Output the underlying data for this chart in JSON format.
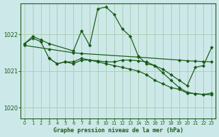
{
  "bg_color": "#cce8e8",
  "line_color": "#1a5c1a",
  "grid_color": "#a8cca8",
  "xlabel": "Graphe pression niveau de la mer (hPa)",
  "ylim": [
    1019.7,
    1022.85
  ],
  "xlim": [
    -0.5,
    23.5
  ],
  "yticks": [
    1020,
    1021,
    1022
  ],
  "xticks": [
    0,
    1,
    2,
    3,
    4,
    5,
    6,
    7,
    8,
    9,
    10,
    11,
    12,
    13,
    14,
    15,
    16,
    17,
    18,
    19,
    20,
    21,
    22,
    23
  ],
  "series": [
    {
      "x": [
        0,
        1,
        2,
        3,
        6,
        7,
        8,
        9,
        10,
        11,
        12,
        13,
        14,
        15,
        16,
        17,
        18,
        19,
        20,
        21,
        22,
        23
      ],
      "y": [
        1021.75,
        1021.95,
        1021.85,
        1021.75,
        1021.55,
        1022.1,
        1021.7,
        1022.7,
        1022.75,
        1022.55,
        1022.15,
        1021.95,
        1021.4,
        1021.2,
        1021.15,
        1021.05,
        1020.9,
        1020.75,
        1020.6,
        1021.1,
        1021.15,
        1021.65
      ]
    },
    {
      "x": [
        0,
        3,
        6,
        7,
        14,
        19,
        20,
        21,
        22,
        23
      ],
      "y": [
        1021.7,
        1021.6,
        1021.5,
        1021.48,
        1021.38,
        1021.3,
        1021.28,
        1021.27,
        1021.26,
        1021.25
      ]
    },
    {
      "x": [
        0,
        1,
        2,
        3,
        4,
        5,
        6,
        7,
        8,
        9,
        10,
        11,
        12,
        13,
        14,
        15,
        16,
        17,
        18,
        19,
        20,
        21,
        22,
        23
      ],
      "y": [
        1021.75,
        1021.9,
        1021.8,
        1021.35,
        1021.2,
        1021.25,
        1021.25,
        1021.35,
        1021.3,
        1021.25,
        1021.2,
        1021.15,
        1021.1,
        1021.05,
        1021.0,
        1020.9,
        1020.75,
        1020.65,
        1020.55,
        1020.5,
        1020.4,
        1020.38,
        1020.36,
        1020.35
      ]
    },
    {
      "x": [
        3,
        4,
        5,
        6,
        7,
        8,
        9,
        10,
        11,
        12,
        13,
        14,
        15,
        16,
        17,
        18,
        19,
        20,
        21,
        22,
        23
      ],
      "y": [
        1021.35,
        1021.2,
        1021.25,
        1021.2,
        1021.3,
        1021.3,
        1021.28,
        1021.25,
        1021.25,
        1021.3,
        1021.3,
        1021.28,
        1021.25,
        1021.15,
        1020.95,
        1020.75,
        1020.55,
        1020.42,
        1020.38,
        1020.36,
        1020.4
      ]
    }
  ]
}
